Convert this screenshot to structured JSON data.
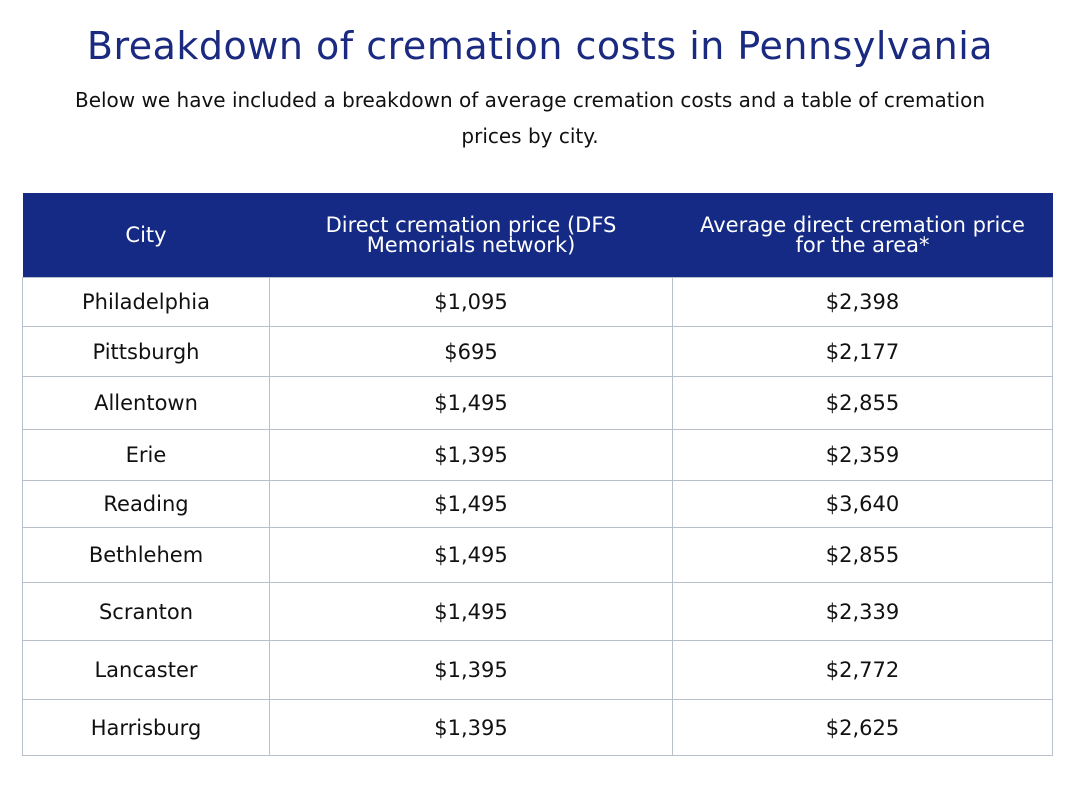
{
  "title": "Breakdown of cremation costs in Pennsylvania",
  "subtitle": "Below we have included a breakdown of average cremation costs and a table of cremation prices by city.",
  "colors": {
    "header_bg": "#142a85",
    "title": "#1a2a80"
  },
  "chart_data": {
    "type": "table",
    "columns": [
      "City",
      "Direct cremation price (DFS Memorials network)",
      "Average direct cremation price for the area*"
    ],
    "rows": [
      [
        "Philadelphia",
        "$1,095",
        "$2,398"
      ],
      [
        "Pittsburgh",
        "$695",
        "$2,177"
      ],
      [
        "Allentown",
        "$1,495",
        "$2,855"
      ],
      [
        "Erie",
        "$1,395",
        "$2,359"
      ],
      [
        "Reading",
        "$1,495",
        "$3,640"
      ],
      [
        "Bethlehem",
        "$1,495",
        "$2,855"
      ],
      [
        "Scranton",
        "$1,495",
        "$2,339"
      ],
      [
        "Lancaster",
        "$1,395",
        "$2,772"
      ],
      [
        "Harrisburg",
        "$1,395",
        "$2,625"
      ]
    ]
  }
}
